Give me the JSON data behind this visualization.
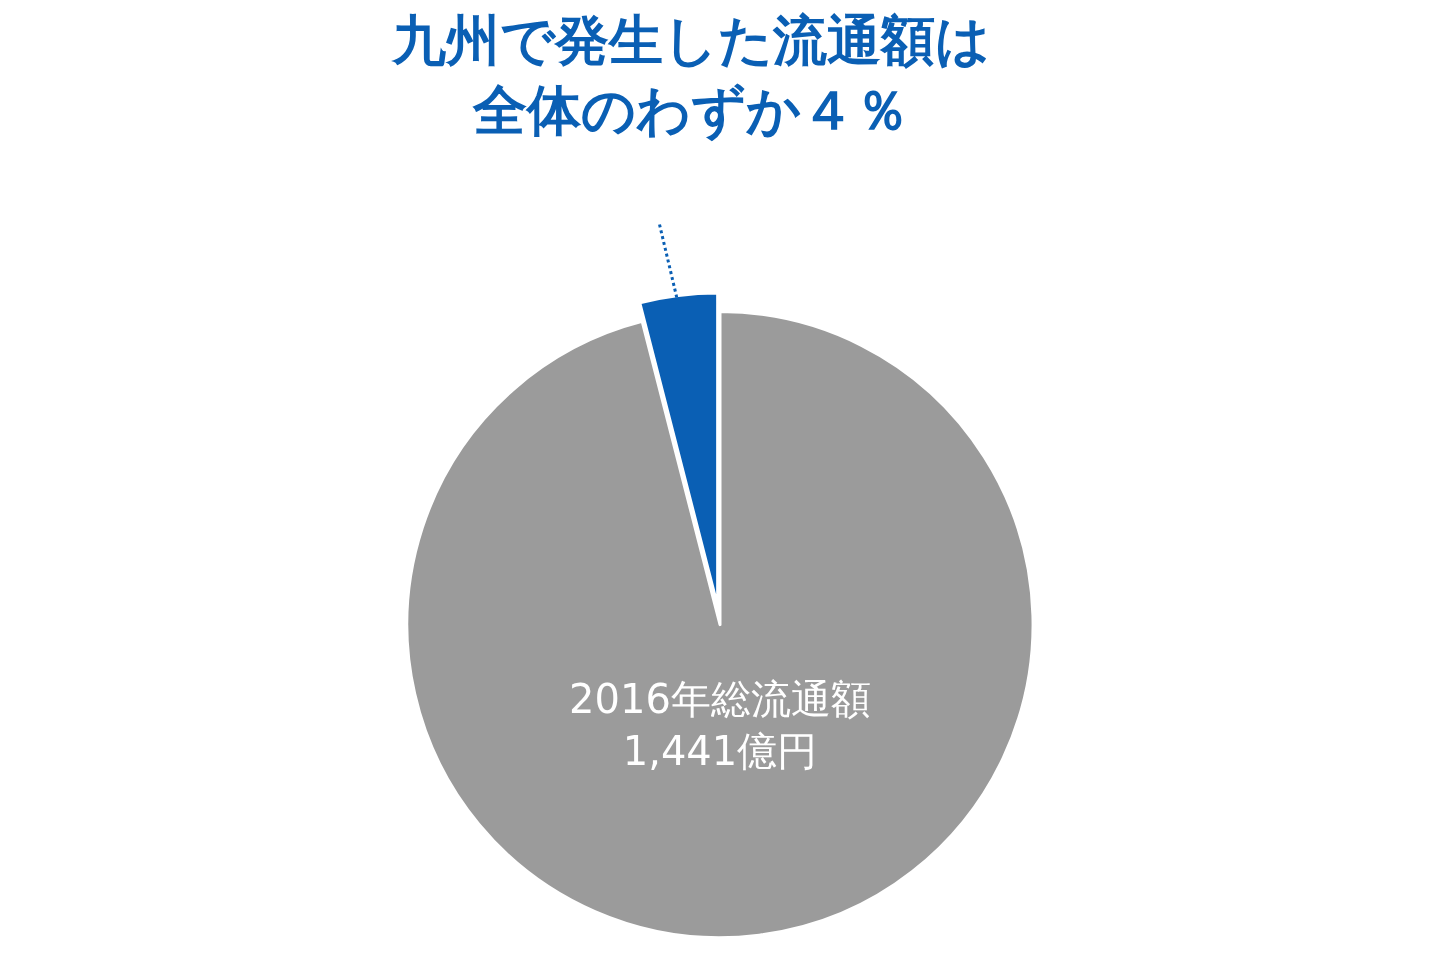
{
  "chart_data": {
    "type": "pie",
    "title": "九州で発生した流通額は",
    "subtitle": "全体のわずか４％",
    "categories": [
      null,
      "2016年総流通額\n1,441億円"
    ],
    "values": [
      4,
      96
    ],
    "colors": [
      "#0a5fb4",
      "#9b9b9b"
    ],
    "legend": false
  }
}
